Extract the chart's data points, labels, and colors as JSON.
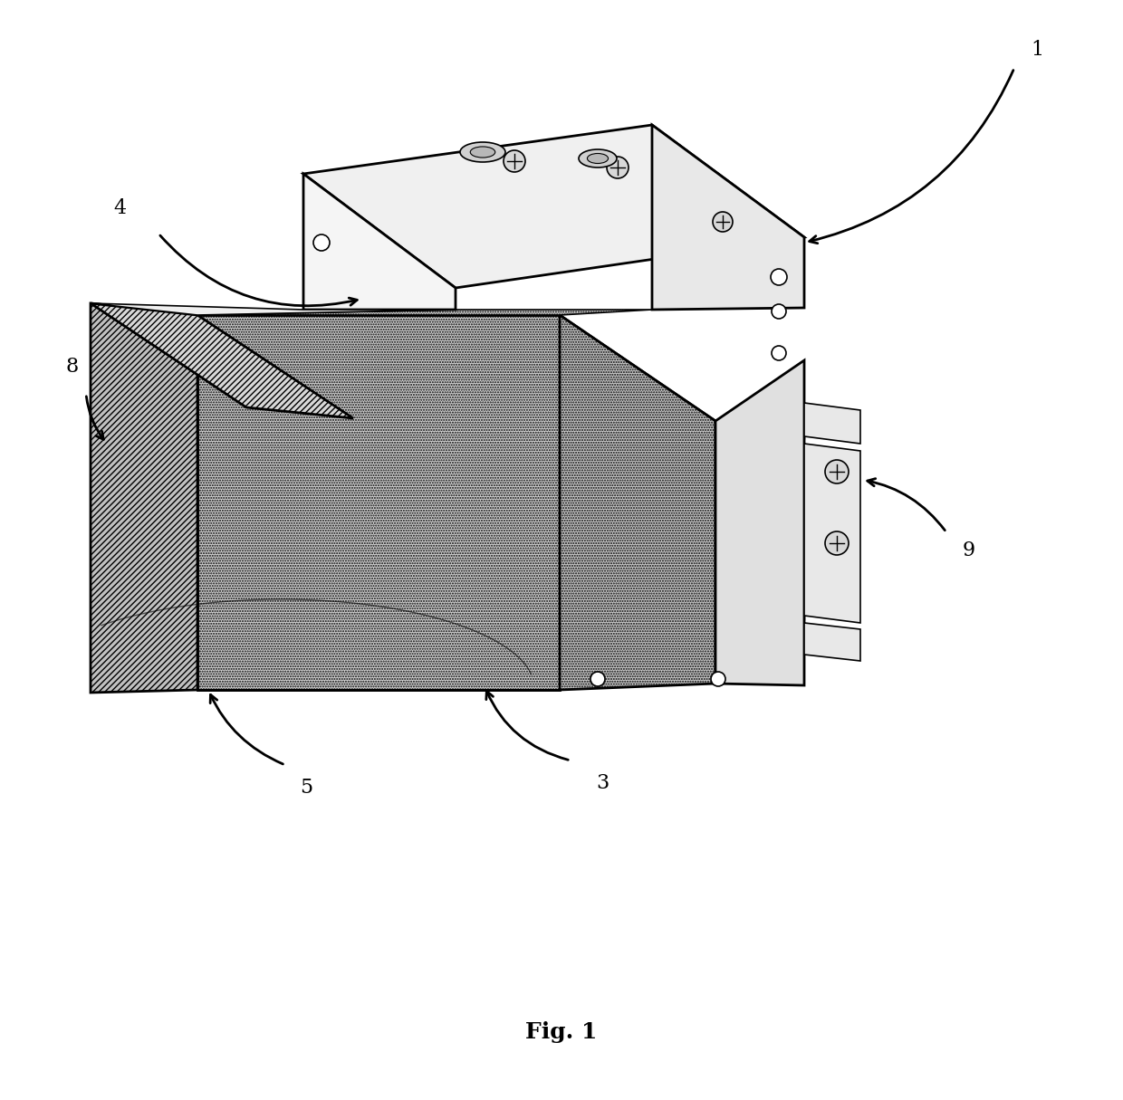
{
  "background_color": "#ffffff",
  "line_color": "#000000",
  "fig_label": "Fig. 1",
  "fig_label_fontsize": 18,
  "label_fontsize": 16
}
